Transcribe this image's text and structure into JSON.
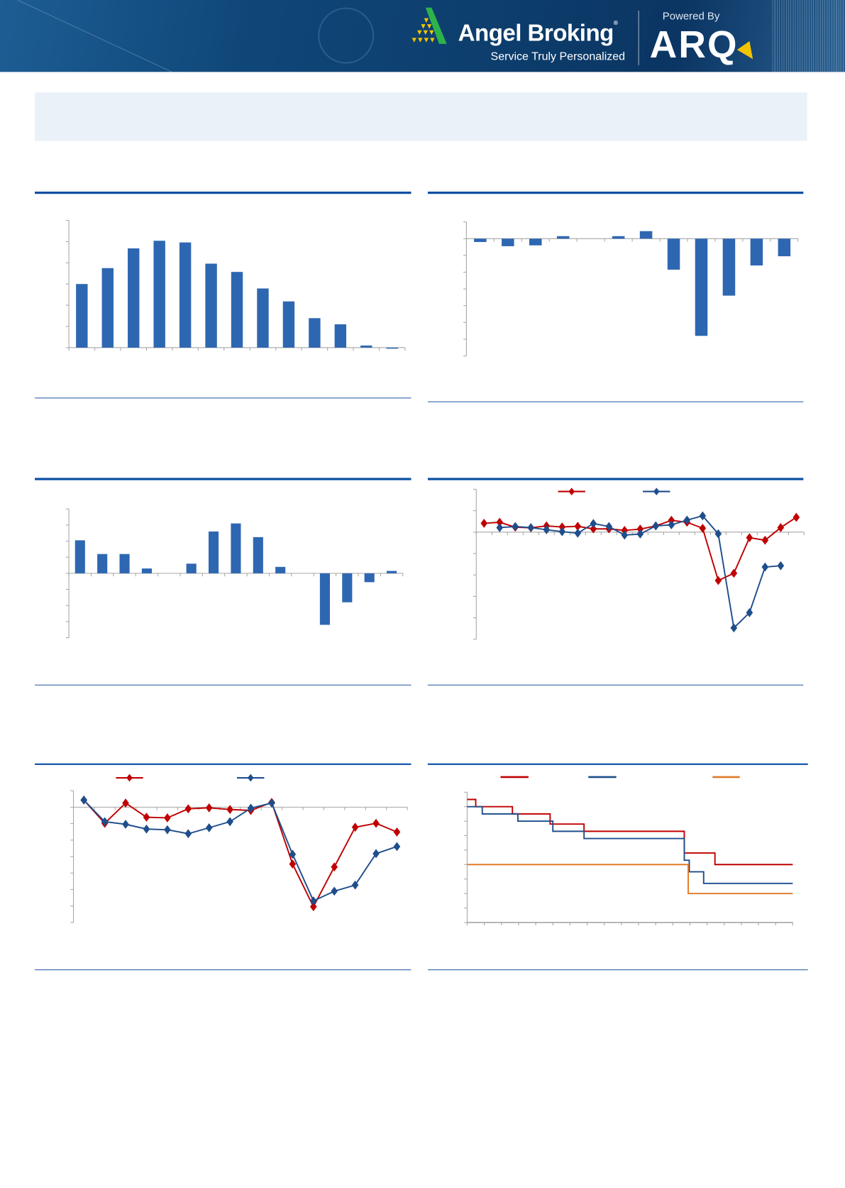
{
  "header": {
    "brand": "Angel Broking",
    "registered_mark": "®",
    "tagline": "Service Truly Personalized",
    "powered_by": "Powered By",
    "product": "ARQ",
    "colors": {
      "banner": "#0d3f6e",
      "logo_green": "#2db34a",
      "logo_yellow": "#f2c400"
    }
  },
  "colors": {
    "rule": "#0b4ea2",
    "bar": "#2e67b1",
    "red": "#c00000",
    "blue": "#1f4e8c",
    "orange": "#e07b2a",
    "axis": "#a6a6a6",
    "summary_bg": "#eaf1f8"
  },
  "chart_data": [
    {
      "type": "bar",
      "ylim": [
        0,
        6
      ],
      "grid": false,
      "categories": [
        "",
        "",
        "",
        "",
        "",
        "",
        "",
        "",
        "",
        "",
        "",
        "",
        ""
      ],
      "values": [
        3.0,
        3.75,
        4.68,
        5.04,
        4.96,
        3.96,
        3.57,
        2.79,
        2.18,
        1.39,
        1.1,
        0.1,
        -0.05
      ]
    },
    {
      "type": "bar",
      "ylim": [
        -7,
        1
      ],
      "grid": false,
      "categories": [
        "",
        "",
        "",
        "",
        "",
        "",
        "",
        "",
        "",
        "",
        "",
        ""
      ],
      "values": [
        -0.2,
        -0.45,
        -0.4,
        0.15,
        0,
        0.15,
        0.45,
        -1.85,
        -5.8,
        -3.4,
        -1.6,
        -1.05
      ]
    },
    {
      "type": "bar",
      "ylim": [
        -4,
        4
      ],
      "grid": false,
      "categories": [
        "",
        "",
        "",
        "",
        "",
        "",
        "",
        "",
        "",
        "",
        "",
        "",
        "",
        "",
        ""
      ],
      "values": [
        2.05,
        1.2,
        1.2,
        0.3,
        0,
        0.6,
        2.6,
        3.1,
        2.25,
        0.4,
        0,
        -3.2,
        -1.8,
        -0.55,
        0.15
      ]
    },
    {
      "type": "line",
      "ylim": [
        -5,
        2
      ],
      "grid": false,
      "legend": "top",
      "series": [
        {
          "color": "#c00000",
          "values": [
            0.41,
            0.46,
            0.23,
            0.2,
            0.29,
            0.24,
            0.27,
            0.15,
            0.15,
            0.08,
            0.14,
            0.29,
            0.55,
            0.46,
            0.18,
            -2.26,
            -1.92,
            -0.26,
            -0.38,
            0.21,
            0.69
          ]
        },
        {
          "color": "#1f4e8c",
          "values": [
            null,
            0.21,
            0.26,
            0.21,
            0.11,
            0.02,
            -0.05,
            0.4,
            0.26,
            -0.14,
            -0.09,
            0.29,
            0.34,
            0.56,
            0.76,
            -0.08,
            -4.47,
            -3.76,
            -1.63,
            -1.57,
            null
          ]
        }
      ]
    },
    {
      "type": "line",
      "ylim": [
        -7,
        1
      ],
      "grid": false,
      "legend": "top",
      "series": [
        {
          "color": "#c00000",
          "values": [
            0.43,
            -0.98,
            0.25,
            -0.61,
            -0.65,
            -0.1,
            -0.04,
            -0.14,
            -0.2,
            0.29,
            -3.45,
            -6.04,
            -3.63,
            -1.22,
            -0.98,
            -1.51
          ]
        },
        {
          "color": "#1f4e8c",
          "values": [
            0.43,
            -0.88,
            -1.04,
            -1.33,
            -1.37,
            -1.61,
            -1.25,
            -0.88,
            -0.06,
            0.25,
            -2.86,
            -5.69,
            -5.1,
            -4.73,
            -2.82,
            -2.39
          ]
        }
      ]
    },
    {
      "type": "line",
      "step": true,
      "xlim": [
        0,
        19
      ],
      "ylim": [
        0,
        9
      ],
      "grid": false,
      "legend": "top",
      "series": [
        {
          "color": "#c00000",
          "points": [
            [
              0,
              8.5
            ],
            [
              0.5,
              8
            ],
            [
              2.64,
              7.5
            ],
            [
              4.84,
              6.8
            ],
            [
              6.82,
              6.3
            ],
            [
              12.67,
              4.8
            ],
            [
              14.46,
              4
            ],
            [
              19,
              4
            ]
          ]
        },
        {
          "color": "#1f4e8c",
          "points": [
            [
              0,
              8
            ],
            [
              0.88,
              7.5
            ],
            [
              2.96,
              7
            ],
            [
              5,
              6.3
            ],
            [
              6.82,
              5.8
            ],
            [
              12.67,
              4.3
            ],
            [
              12.96,
              3.5
            ],
            [
              13.8,
              2.7
            ],
            [
              19,
              2.7
            ]
          ]
        },
        {
          "color": "#e07b2a",
          "points": [
            [
              0,
              4
            ],
            [
              12.9,
              2
            ],
            [
              19,
              2
            ]
          ]
        }
      ]
    }
  ]
}
